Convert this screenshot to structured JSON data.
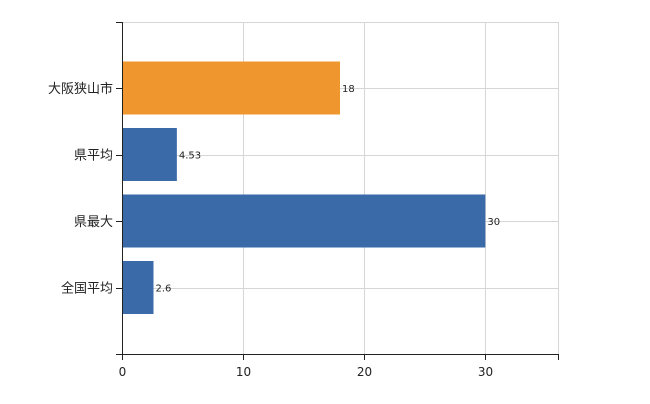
{
  "chart_data": {
    "type": "bar",
    "orientation": "horizontal",
    "categories": [
      "大阪狭山市",
      "県平均",
      "県最大",
      "全国平均"
    ],
    "values": [
      18,
      4.53,
      30,
      2.6
    ],
    "data_labels": [
      "18",
      "4.53",
      "30",
      "2.6"
    ],
    "bar_colors": [
      "#F0962E",
      "#3A6AA8",
      "#3A6AA8",
      "#3A6AA8"
    ],
    "xlim": [
      0,
      36
    ],
    "x_ticks": [
      0,
      10,
      20,
      30
    ],
    "x_tick_labels": [
      "0",
      "10",
      "20",
      "30"
    ],
    "grid": true,
    "legend": "none",
    "title": "",
    "xlabel": "",
    "ylabel": ""
  },
  "colors": {
    "highlight": "#F0962E",
    "default_bar": "#3A6AA8",
    "grid": "#d6d6d6",
    "axis": "#222222"
  }
}
